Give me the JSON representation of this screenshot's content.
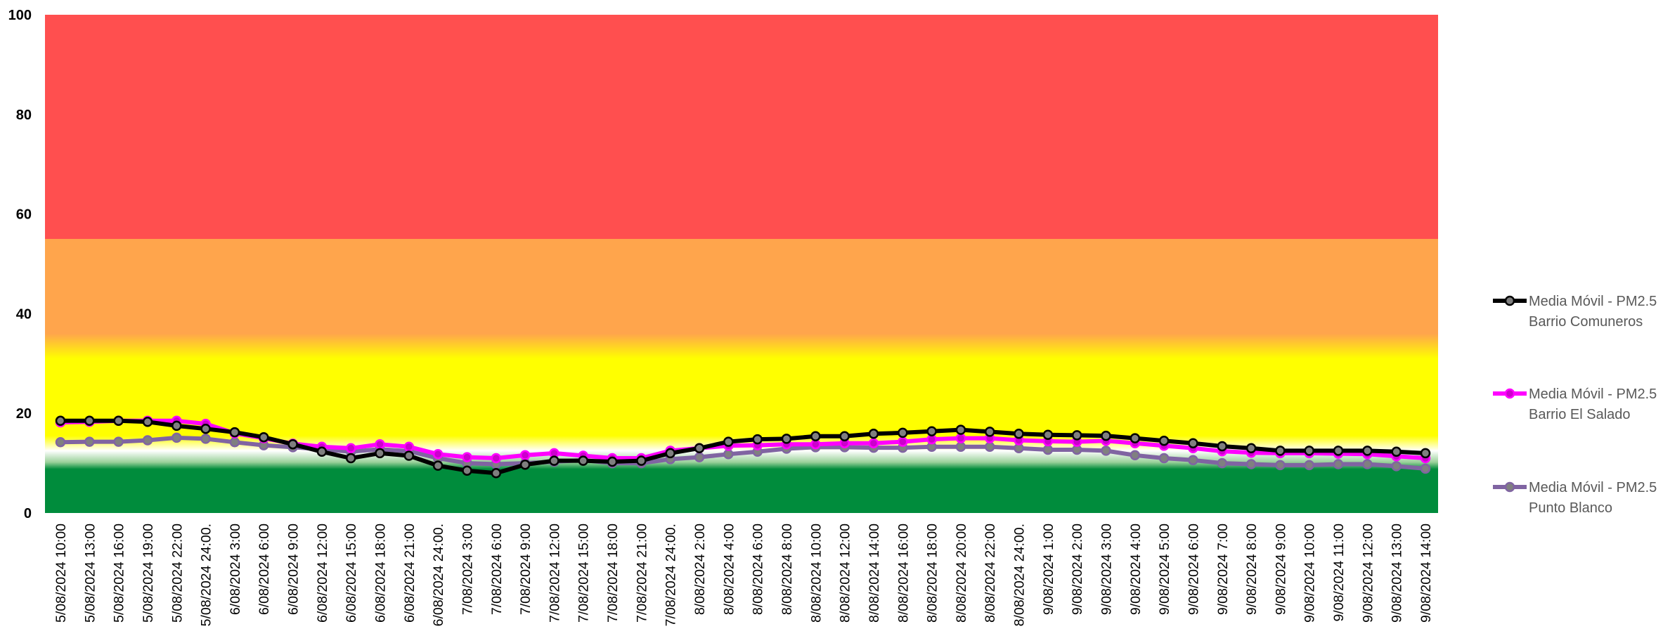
{
  "chart_data": {
    "type": "line",
    "title": "",
    "xlabel": "",
    "ylabel": "",
    "ylim": [
      0,
      100
    ],
    "yticks": [
      0,
      20,
      40,
      60,
      80,
      100
    ],
    "grid": false,
    "legend_position": "right",
    "background_bands": [
      {
        "from": 0,
        "to": 12,
        "color": "#008c3c",
        "label": ""
      },
      {
        "from": 12,
        "to": 35,
        "color": "#ffff00",
        "label": ""
      },
      {
        "from": 35,
        "to": 55,
        "color": "#ffa54c",
        "label": ""
      },
      {
        "from": 55,
        "to": 100,
        "color": "#ff4f4f",
        "label": ""
      }
    ],
    "categories": [
      "5/08/2024 10:00",
      "5/08/2024 13:00",
      "5/08/2024 16:00",
      "5/08/2024 19:00",
      "5/08/2024 22:00",
      "5/08/2024 24:00.",
      "6/08/2024 3:00",
      "6/08/2024 6:00",
      "6/08/2024 9:00",
      "6/08/2024 12:00",
      "6/08/2024 15:00",
      "6/08/2024 18:00",
      "6/08/2024 21:00",
      "6/08/2024 24:00.",
      "7/08/2024 3:00",
      "7/08/2024 6:00",
      "7/08/2024 9:00",
      "7/08/2024 12:00",
      "7/08/2024 15:00",
      "7/08/2024 18:00",
      "7/08/2024 21:00",
      "7/08/2024 24:00.",
      "8/08/2024 2:00",
      "8/08/2024 4:00",
      "8/08/2024 6:00",
      "8/08/2024 8:00",
      "8/08/2024 10:00",
      "8/08/2024 12:00",
      "8/08/2024 14:00",
      "8/08/2024 16:00",
      "8/08/2024 18:00",
      "8/08/2024 20:00",
      "8/08/2024 22:00",
      "8/08/2024 24:00.",
      "9/08/2024 1:00",
      "9/08/2024 2:00",
      "9/08/2024 3:00",
      "9/08/2024 4:00",
      "9/08/2024 5:00",
      "9/08/2024 6:00",
      "9/08/2024 7:00",
      "9/08/2024 8:00",
      "9/08/2024 9:00",
      "9/08/2024 10:00",
      "9/08/2024 11:00",
      "9/08/2024 12:00",
      "9/08/2024 13:00",
      "9/08/2024 14:00"
    ],
    "series": [
      {
        "name": "Media Móvil - PM2.5 Barrio Comuneros",
        "color": "#000000",
        "marker_color": "#7f7f7f",
        "values": [
          18.5,
          18.5,
          18.5,
          18.3,
          17.5,
          16.9,
          16.2,
          15.2,
          13.8,
          12.3,
          11.0,
          12.0,
          11.5,
          9.5,
          8.5,
          8.0,
          9.7,
          10.5,
          10.5,
          10.3,
          10.5,
          12.0,
          13.0,
          14.3,
          14.8,
          14.9,
          15.4,
          15.4,
          15.9,
          16.1,
          16.4,
          16.7,
          16.3,
          15.9,
          15.7,
          15.6,
          15.5,
          15.0,
          14.5,
          14.0,
          13.4,
          13.0,
          12.5,
          12.5,
          12.5,
          12.5,
          12.3,
          12.0
        ]
      },
      {
        "name": "Media Móvil - PM2.5 Barrio El Salado",
        "color": "#ff00ff",
        "marker_color": "#cc00cc",
        "values": [
          18.2,
          18.3,
          18.5,
          18.5,
          18.5,
          17.9,
          16.0,
          15.0,
          13.9,
          13.3,
          13.0,
          13.8,
          13.3,
          11.8,
          11.2,
          11.0,
          11.6,
          12.0,
          11.5,
          11.0,
          11.0,
          12.5,
          13.0,
          13.5,
          13.6,
          13.8,
          13.8,
          14.0,
          14.0,
          14.3,
          14.8,
          15.0,
          15.0,
          14.6,
          14.4,
          14.3,
          14.5,
          14.0,
          13.5,
          13.0,
          12.4,
          12.1,
          12.0,
          12.0,
          11.9,
          11.8,
          11.4,
          11.0
        ]
      },
      {
        "name": "Media Móvil - PM2.5 Punto Blanco",
        "color": "#8064a2",
        "marker_color": "#808080",
        "values": [
          14.2,
          14.3,
          14.3,
          14.6,
          15.1,
          14.9,
          14.2,
          13.6,
          13.2,
          12.8,
          12.3,
          12.8,
          12.4,
          11.0,
          10.0,
          9.8,
          10.0,
          10.3,
          10.6,
          10.0,
          10.0,
          10.8,
          11.2,
          11.8,
          12.3,
          12.9,
          13.2,
          13.2,
          13.1,
          13.1,
          13.3,
          13.3,
          13.3,
          13.0,
          12.7,
          12.7,
          12.5,
          11.6,
          11.0,
          10.6,
          10.0,
          9.8,
          9.6,
          9.6,
          9.8,
          9.8,
          9.4,
          8.9
        ]
      }
    ]
  }
}
